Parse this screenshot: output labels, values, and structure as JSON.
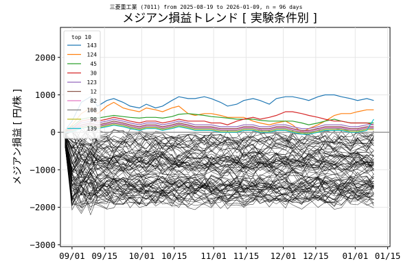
{
  "chart_data": {
    "type": "line",
    "subtitle": "三菱重工業 (7011) from 2025-08-19 to 2026-01-09, n = 96 days",
    "title": "メジアン損益トレンド [ 実験条件別 ]",
    "xlabel": "",
    "ylabel": "メジアン損益 [ 円/株 ]",
    "x_range": [
      "2025-08-27",
      "2026-01-16"
    ],
    "ylim": [
      -3050,
      2800
    ],
    "x_ticks": [
      {
        "date": "2025-09-01",
        "label": "09/01"
      },
      {
        "date": "2025-09-15",
        "label": "09/15"
      },
      {
        "date": "2025-10-01",
        "label": "10/01"
      },
      {
        "date": "2025-10-15",
        "label": "10/15"
      },
      {
        "date": "2025-11-01",
        "label": "11/01"
      },
      {
        "date": "2025-11-15",
        "label": "11/15"
      },
      {
        "date": "2025-12-01",
        "label": "12/01"
      },
      {
        "date": "2025-12-15",
        "label": "12/15"
      },
      {
        "date": "2026-01-01",
        "label": "01/01"
      },
      {
        "date": "2026-01-15",
        "label": "01/15"
      }
    ],
    "y_ticks": [
      {
        "value": 2000,
        "label": "2000"
      },
      {
        "value": 1000,
        "label": "1000"
      },
      {
        "value": 0,
        "label": "0"
      },
      {
        "value": -1000,
        "label": "−1000"
      },
      {
        "value": -2000,
        "label": "−2000"
      },
      {
        "value": -3000,
        "label": "−3000"
      }
    ],
    "grid": true,
    "zero_line": true,
    "legend": {
      "title": "top 10",
      "placement": "upper-left"
    },
    "x_dates": [
      "2025-08-29",
      "2025-09-01",
      "2025-09-05",
      "2025-09-09",
      "2025-09-12",
      "2025-09-16",
      "2025-09-19",
      "2025-09-23",
      "2025-09-26",
      "2025-09-30",
      "2025-10-03",
      "2025-10-07",
      "2025-10-10",
      "2025-10-14",
      "2025-10-17",
      "2025-10-21",
      "2025-10-24",
      "2025-10-28",
      "2025-10-31",
      "2025-11-04",
      "2025-11-07",
      "2025-11-11",
      "2025-11-14",
      "2025-11-18",
      "2025-11-21",
      "2025-11-25",
      "2025-11-28",
      "2025-12-02",
      "2025-12-05",
      "2025-12-09",
      "2025-12-12",
      "2025-12-16",
      "2025-12-19",
      "2025-12-23",
      "2025-12-26",
      "2025-12-30",
      "2026-01-02",
      "2026-01-06",
      "2026-01-09"
    ],
    "series": [
      {
        "name": "143",
        "color": "#1f77b4",
        "values": [
          50,
          300,
          800,
          950,
          700,
          850,
          900,
          800,
          700,
          650,
          750,
          650,
          700,
          850,
          950,
          900,
          900,
          950,
          900,
          800,
          700,
          750,
          850,
          900,
          850,
          750,
          900,
          950,
          950,
          900,
          850,
          950,
          1000,
          1000,
          950,
          900,
          850,
          900,
          850
        ]
      },
      {
        "name": "124",
        "color": "#ff7f0e",
        "values": [
          30,
          200,
          500,
          650,
          500,
          700,
          800,
          650,
          600,
          550,
          650,
          600,
          550,
          650,
          700,
          500,
          450,
          500,
          500,
          450,
          400,
          400,
          400,
          300,
          250,
          200,
          250,
          300,
          200,
          0,
          100,
          200,
          300,
          450,
          500,
          500,
          550,
          600,
          600
        ]
      },
      {
        "name": "45",
        "color": "#2ca02c",
        "values": [
          20,
          150,
          350,
          400,
          380,
          420,
          450,
          420,
          400,
          380,
          400,
          400,
          380,
          420,
          480,
          500,
          480,
          450,
          420,
          400,
          380,
          350,
          350,
          350,
          320,
          300,
          300,
          300,
          300,
          250,
          200,
          250,
          300,
          350,
          300,
          250,
          250,
          250,
          250
        ]
      },
      {
        "name": "30",
        "color": "#d62728",
        "values": [
          10,
          100,
          300,
          350,
          300,
          350,
          400,
          350,
          300,
          250,
          300,
          300,
          250,
          300,
          350,
          300,
          300,
          300,
          250,
          250,
          200,
          300,
          350,
          400,
          350,
          400,
          450,
          550,
          550,
          500,
          450,
          400,
          350,
          300,
          300,
          250,
          250,
          250,
          200
        ]
      },
      {
        "name": "123",
        "color": "#9467bd",
        "values": [
          0,
          80,
          250,
          300,
          250,
          300,
          350,
          300,
          250,
          200,
          250,
          250,
          200,
          250,
          300,
          250,
          200,
          200,
          200,
          150,
          150,
          150,
          200,
          200,
          150,
          150,
          200,
          200,
          150,
          100,
          100,
          150,
          200,
          200,
          200,
          150,
          150,
          200,
          200
        ]
      },
      {
        "name": "12",
        "color": "#8c564b",
        "values": [
          0,
          60,
          200,
          250,
          200,
          250,
          300,
          250,
          200,
          150,
          200,
          200,
          150,
          200,
          250,
          200,
          150,
          150,
          150,
          100,
          100,
          100,
          150,
          150,
          100,
          100,
          150,
          150,
          100,
          50,
          50,
          100,
          150,
          150,
          150,
          100,
          100,
          150,
          150
        ]
      },
      {
        "name": "82",
        "color": "#e377c2",
        "values": [
          0,
          50,
          180,
          220,
          180,
          220,
          260,
          220,
          180,
          130,
          180,
          180,
          130,
          180,
          220,
          180,
          130,
          130,
          130,
          80,
          80,
          80,
          130,
          130,
          80,
          80,
          130,
          130,
          80,
          30,
          30,
          80,
          130,
          130,
          130,
          80,
          80,
          130,
          130
        ]
      },
      {
        "name": "108",
        "color": "#7f7f7f",
        "values": [
          0,
          40,
          150,
          200,
          150,
          200,
          240,
          200,
          150,
          100,
          150,
          150,
          100,
          150,
          200,
          150,
          100,
          100,
          100,
          50,
          50,
          50,
          100,
          100,
          50,
          50,
          100,
          100,
          50,
          0,
          0,
          50,
          100,
          100,
          100,
          50,
          50,
          100,
          100
        ]
      },
      {
        "name": "90",
        "color": "#bcbd22",
        "values": [
          0,
          30,
          120,
          170,
          120,
          170,
          210,
          170,
          120,
          70,
          120,
          120,
          70,
          120,
          170,
          120,
          70,
          70,
          70,
          20,
          20,
          20,
          70,
          70,
          20,
          20,
          70,
          70,
          20,
          -30,
          -30,
          20,
          70,
          70,
          70,
          20,
          20,
          70,
          70
        ]
      },
      {
        "name": "139",
        "color": "#17becf",
        "values": [
          0,
          20,
          100,
          150,
          100,
          150,
          190,
          150,
          100,
          50,
          100,
          100,
          50,
          100,
          150,
          100,
          50,
          50,
          50,
          0,
          0,
          0,
          50,
          50,
          0,
          0,
          50,
          50,
          0,
          -50,
          -50,
          0,
          50,
          50,
          50,
          0,
          0,
          50,
          350
        ]
      }
    ],
    "background_lines": {
      "count": 86,
      "color": "#000000"
    }
  }
}
